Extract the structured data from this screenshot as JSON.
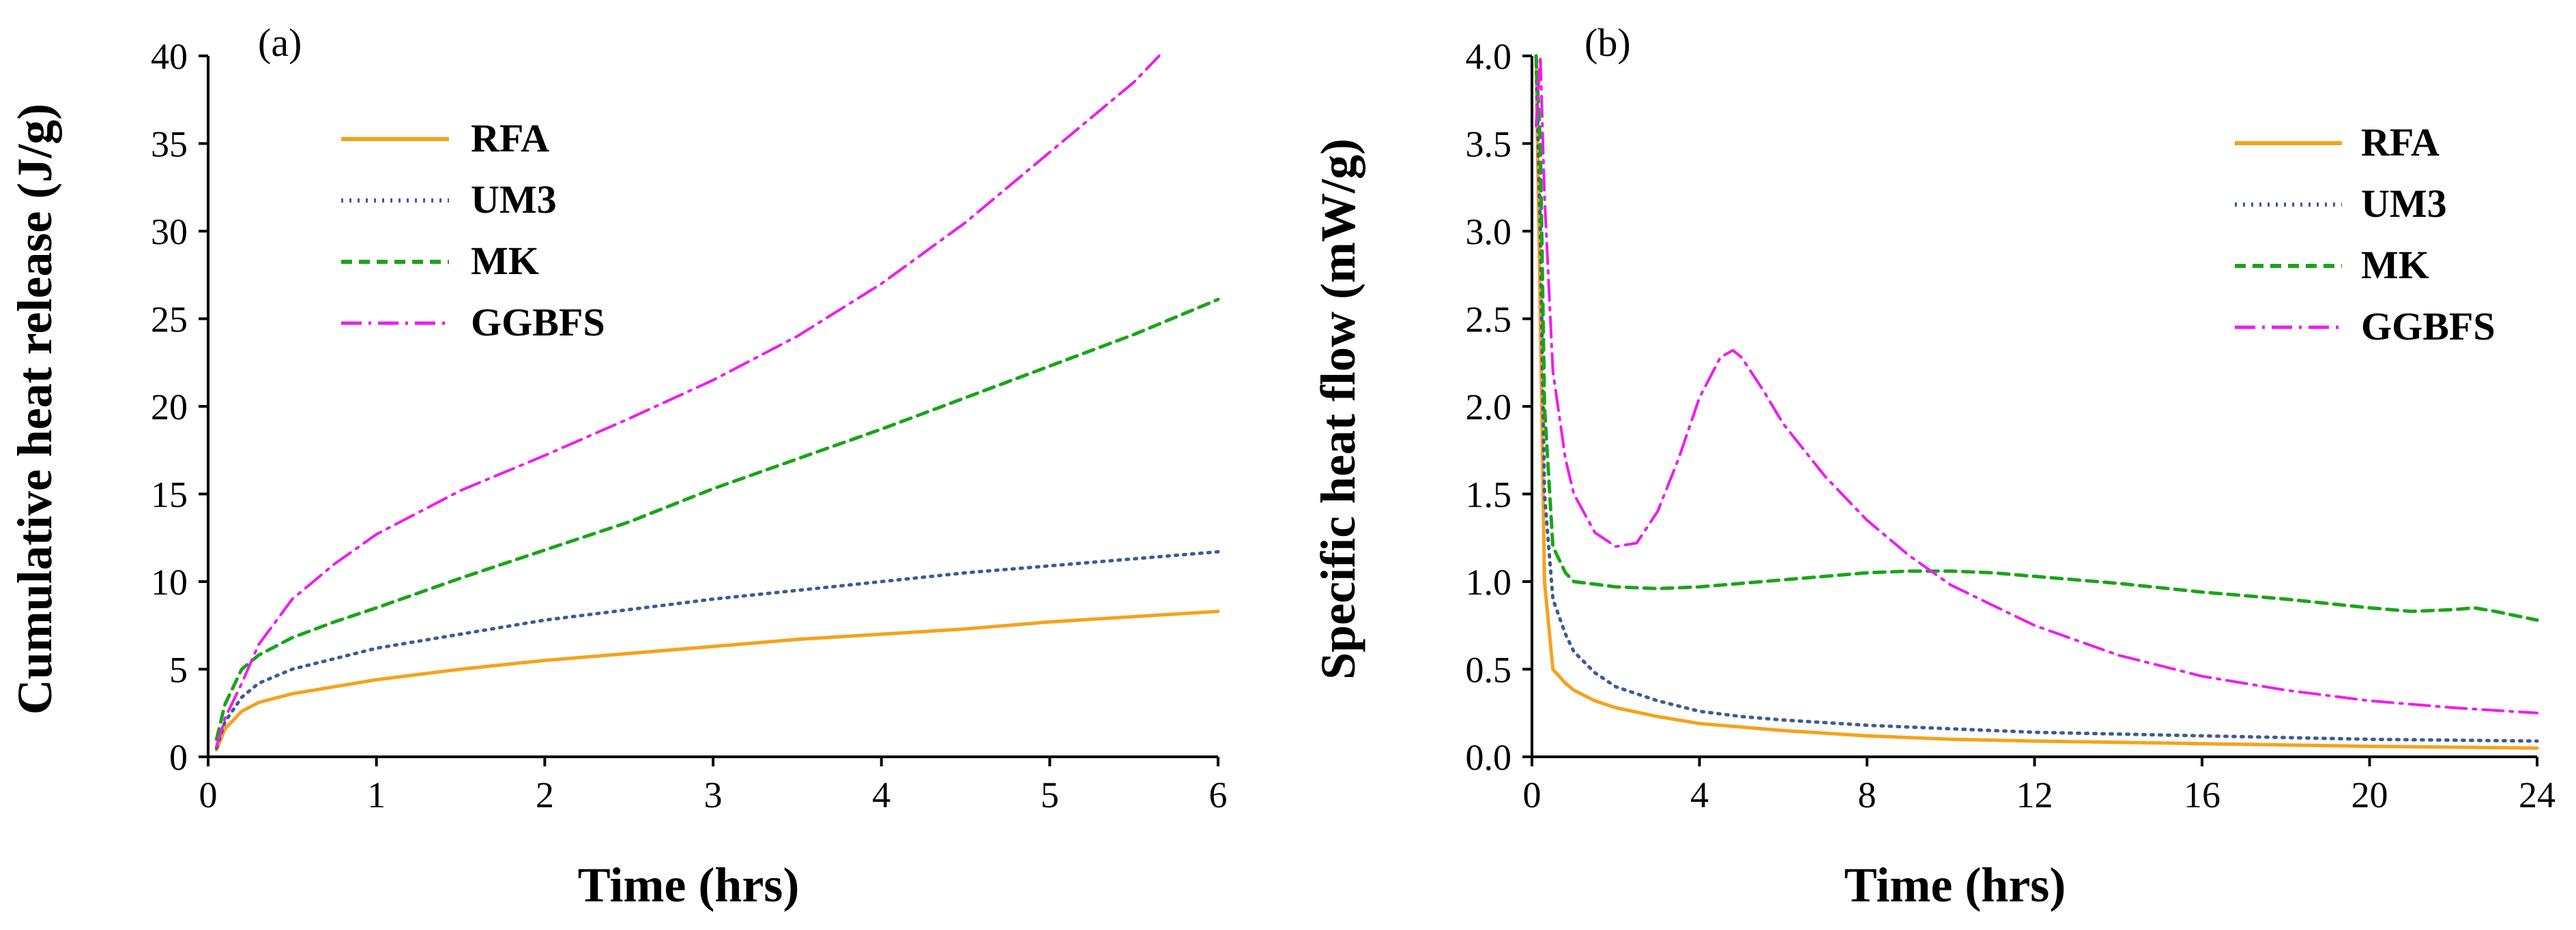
{
  "series_styles": [
    {
      "key": "RFA",
      "color": "#f5a21c",
      "dash": "none",
      "width": 5
    },
    {
      "key": "UM3",
      "color": "#3d5a99",
      "dash": "3 9",
      "width": 5
    },
    {
      "key": "MK",
      "color": "#1aa41a",
      "dash": "16 10",
      "width": 5
    },
    {
      "key": "GGBFS",
      "color": "#ee1cee",
      "dash": "30 10 4 10",
      "width": 4
    }
  ],
  "chart_data": [
    {
      "type": "line",
      "panel_label": "(a)",
      "xlabel": "Time (hrs)",
      "ylabel": "Cumulative heat release (J/g)",
      "xlim": [
        0,
        6
      ],
      "ylim": [
        0,
        40
      ],
      "xticks": [
        0,
        1,
        2,
        3,
        4,
        5,
        6
      ],
      "yticks": [
        0,
        5,
        10,
        15,
        20,
        25,
        30,
        35,
        40
      ],
      "legend": [
        "RFA",
        "UM3",
        "MK",
        "GGBFS"
      ],
      "series": [
        {
          "name": "RFA",
          "x": [
            0.05,
            0.1,
            0.2,
            0.3,
            0.5,
            0.75,
            1,
            1.5,
            2,
            2.5,
            3,
            3.5,
            4,
            4.5,
            5,
            5.5,
            6
          ],
          "y": [
            0.4,
            1.6,
            2.6,
            3.1,
            3.6,
            4.0,
            4.4,
            5.0,
            5.5,
            5.9,
            6.3,
            6.7,
            7.0,
            7.3,
            7.7,
            8.0,
            8.3
          ]
        },
        {
          "name": "UM3",
          "x": [
            0.05,
            0.1,
            0.2,
            0.3,
            0.5,
            0.75,
            1,
            1.5,
            2,
            2.5,
            3,
            3.5,
            4,
            4.5,
            5,
            5.5,
            6
          ],
          "y": [
            0.5,
            2.0,
            3.4,
            4.2,
            5.0,
            5.6,
            6.2,
            7.0,
            7.8,
            8.4,
            9.0,
            9.5,
            10.0,
            10.5,
            10.9,
            11.3,
            11.7
          ]
        },
        {
          "name": "MK",
          "x": [
            0.05,
            0.1,
            0.2,
            0.3,
            0.5,
            0.75,
            1,
            1.5,
            2,
            2.5,
            3,
            3.5,
            4,
            4.5,
            5,
            5.5,
            6
          ],
          "y": [
            1.0,
            3.0,
            5.0,
            5.8,
            6.8,
            7.7,
            8.5,
            10.2,
            11.8,
            13.4,
            15.3,
            17.0,
            18.7,
            20.5,
            22.3,
            24.1,
            26.1
          ]
        },
        {
          "name": "GGBFS",
          "x": [
            0.05,
            0.1,
            0.2,
            0.3,
            0.5,
            0.75,
            1,
            1.5,
            2,
            2.5,
            3,
            3.5,
            4,
            4.5,
            5,
            5.5,
            5.65
          ],
          "y": [
            0.6,
            2.2,
            4.2,
            6.4,
            9.0,
            11.0,
            12.7,
            15.2,
            17.2,
            19.3,
            21.5,
            24.0,
            27.0,
            30.5,
            34.5,
            38.5,
            40.0
          ]
        }
      ]
    },
    {
      "type": "line",
      "panel_label": "(b)",
      "xlabel": "Time (hrs)",
      "ylabel": "Specific heat flow (mW/g)",
      "xlim": [
        0,
        24
      ],
      "ylim": [
        0,
        4.0
      ],
      "xticks": [
        0,
        4,
        8,
        12,
        16,
        20,
        24
      ],
      "yticks": [
        "0.0",
        "0.5",
        "1.0",
        "1.5",
        "2.0",
        "2.5",
        "3.0",
        "3.5",
        "4.0"
      ],
      "legend": [
        "RFA",
        "UM3",
        "MK",
        "GGBFS"
      ],
      "series": [
        {
          "name": "RFA",
          "x": [
            0.1,
            0.2,
            0.3,
            0.5,
            0.8,
            1,
            1.5,
            2,
            3,
            4,
            5,
            6,
            8,
            10,
            12,
            16,
            20,
            24
          ],
          "y": [
            4.0,
            2.5,
            1.0,
            0.5,
            0.42,
            0.38,
            0.32,
            0.28,
            0.23,
            0.19,
            0.17,
            0.15,
            0.12,
            0.1,
            0.09,
            0.075,
            0.06,
            0.05
          ]
        },
        {
          "name": "UM3",
          "x": [
            0.1,
            0.2,
            0.3,
            0.5,
            0.8,
            1,
            1.5,
            2,
            3,
            4,
            5,
            6,
            8,
            10,
            12,
            16,
            20,
            24
          ],
          "y": [
            4.0,
            3.0,
            1.5,
            0.9,
            0.7,
            0.6,
            0.48,
            0.4,
            0.32,
            0.26,
            0.23,
            0.21,
            0.18,
            0.16,
            0.14,
            0.12,
            0.1,
            0.09
          ]
        },
        {
          "name": "MK",
          "x": [
            0.1,
            0.2,
            0.3,
            0.5,
            0.8,
            1,
            2,
            3,
            4,
            5,
            6,
            7,
            8,
            9,
            10,
            11,
            12,
            14,
            16,
            18,
            20,
            21,
            22,
            22.5,
            23,
            24
          ],
          "y": [
            4.0,
            3.5,
            2.0,
            1.2,
            1.05,
            1.0,
            0.97,
            0.96,
            0.97,
            0.99,
            1.01,
            1.03,
            1.05,
            1.06,
            1.06,
            1.05,
            1.03,
            0.99,
            0.94,
            0.9,
            0.85,
            0.83,
            0.84,
            0.85,
            0.83,
            0.78
          ]
        },
        {
          "name": "GGBFS",
          "x": [
            0.1,
            0.2,
            0.3,
            0.5,
            0.8,
            1,
            1.5,
            2,
            2.5,
            3,
            3.5,
            4,
            4.5,
            4.8,
            5,
            5.5,
            6,
            7,
            8,
            9,
            10,
            12,
            14,
            16,
            18,
            20,
            22,
            24
          ],
          "y": [
            3.6,
            4.0,
            3.2,
            2.2,
            1.7,
            1.5,
            1.28,
            1.2,
            1.22,
            1.4,
            1.7,
            2.05,
            2.28,
            2.32,
            2.28,
            2.1,
            1.9,
            1.6,
            1.35,
            1.15,
            0.98,
            0.75,
            0.58,
            0.46,
            0.38,
            0.32,
            0.28,
            0.25
          ]
        }
      ]
    }
  ]
}
